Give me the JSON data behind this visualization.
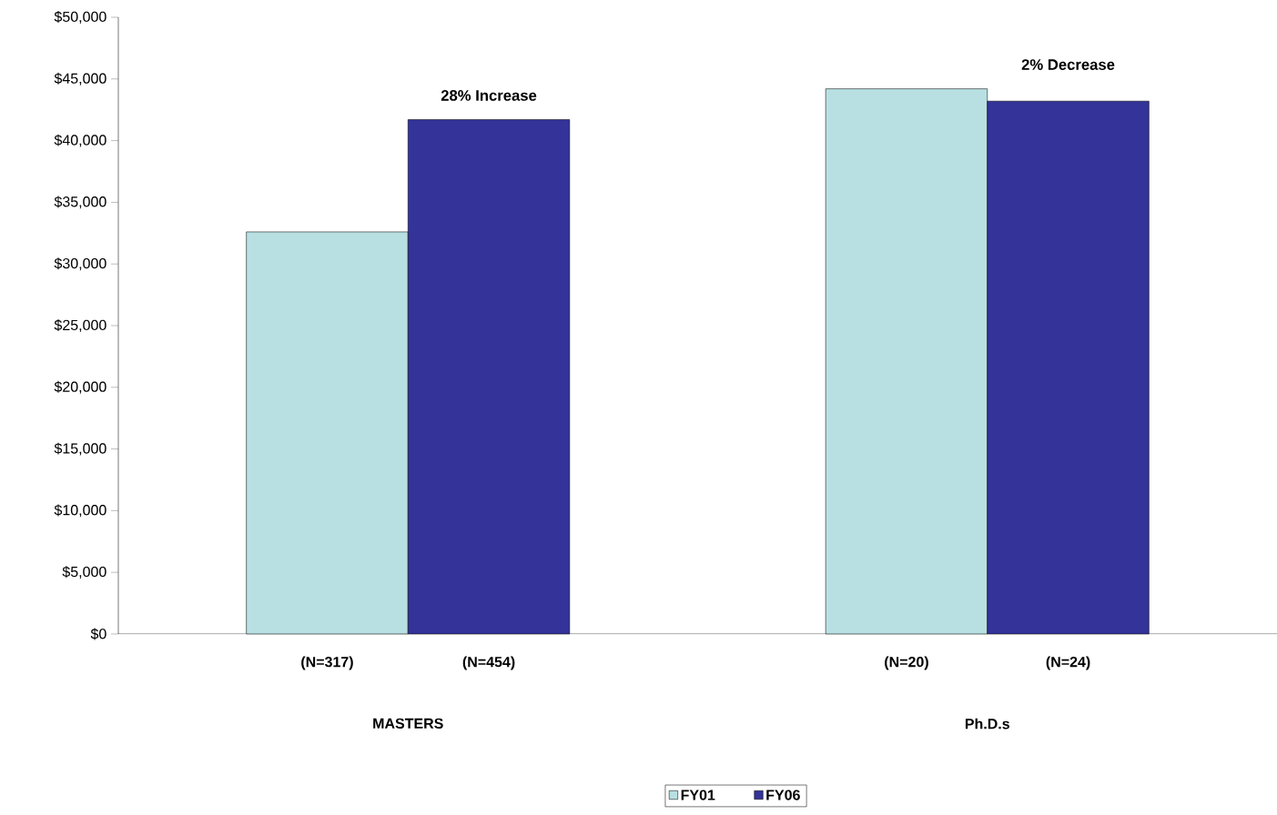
{
  "chart_data": {
    "type": "bar",
    "categories": [
      "MASTERS",
      "Ph.D.s"
    ],
    "series": [
      {
        "name": "FY01",
        "color": "#b8e0e2",
        "values": [
          32600,
          44200
        ]
      },
      {
        "name": "FY06",
        "color": "#333399",
        "values": [
          41700,
          43200
        ]
      }
    ],
    "ylim": [
      0,
      50000
    ],
    "yticks": [
      {
        "value": 0,
        "label": "$0"
      },
      {
        "value": 5000,
        "label": "$5,000"
      },
      {
        "value": 10000,
        "label": "$10,000"
      },
      {
        "value": 15000,
        "label": "$15,000"
      },
      {
        "value": 20000,
        "label": "$20,000"
      },
      {
        "value": 25000,
        "label": "$25,000"
      },
      {
        "value": 30000,
        "label": "$30,000"
      },
      {
        "value": 35000,
        "label": "$35,000"
      },
      {
        "value": 40000,
        "label": "$40,000"
      },
      {
        "value": 45000,
        "label": "$45,000"
      },
      {
        "value": 50000,
        "label": "$50,000"
      }
    ],
    "annotations": [
      "28% Increase",
      "2% Decrease",
      "(N=317)",
      "(N=454)",
      "(N=20)",
      "(N=24)"
    ],
    "grid": false,
    "legend": "bottom"
  }
}
